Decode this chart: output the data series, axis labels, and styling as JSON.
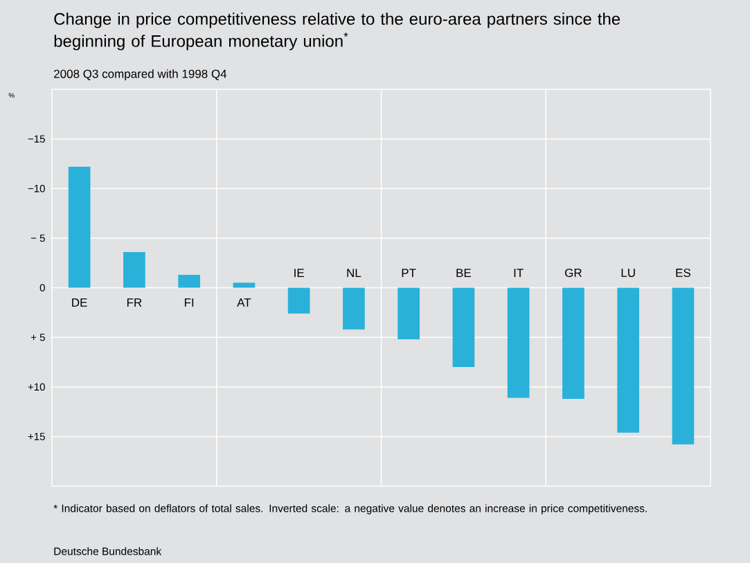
{
  "chart_data": {
    "type": "bar",
    "title": "Change in price competitiveness relative to the euro-area partners since the beginning of European monetary union$^{*}$",
    "subtitle": "2008 Q3 compared with 1998 Q4",
    "ylabel": "%",
    "categories": [
      "DE",
      "FR",
      "FI",
      "AT",
      "IE",
      "NL",
      "PT",
      "BE",
      "IT",
      "GR",
      "LU",
      "ES"
    ],
    "values": [
      -12.2,
      -3.6,
      -1.3,
      -0.5,
      2.6,
      4.2,
      5.2,
      8.0,
      11.1,
      11.2,
      14.6,
      15.8
    ],
    "color": "#29b1da",
    "ylim": [
      20,
      -20
    ],
    "yticks": [
      {
        "value": -15,
        "label": "−15"
      },
      {
        "value": -10,
        "label": "−10"
      },
      {
        "value": -5,
        "label": "− 5"
      },
      0,
      {
        "value": 5,
        "label": "+ 5"
      },
      {
        "value": 10,
        "label": "+10"
      },
      {
        "value": 15,
        "label": "+15"
      }
    ],
    "grid": true,
    "annotations": [
      "* Indicator based on deflators of total sales. Inverted scale: a negative value denotes an increase in price competitiveness.",
      "Deutsche Bundesbank"
    ]
  }
}
